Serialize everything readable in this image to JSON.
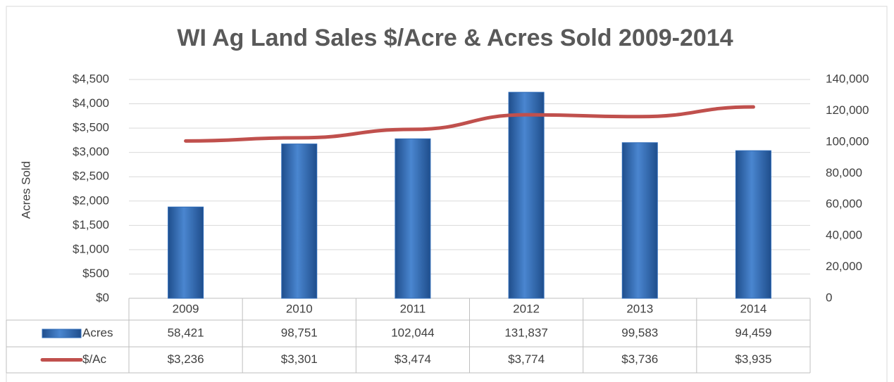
{
  "chart_data": {
    "type": "bar_line_table",
    "title": "WI Ag Land Sales $/Acre & Acres Sold 2009-2014",
    "ylabel": "Acres Sold",
    "categories": [
      "2009",
      "2010",
      "2011",
      "2012",
      "2013",
      "2014"
    ],
    "series": [
      {
        "name": "Acres",
        "type": "bar",
        "axis": "y2",
        "color": "#2e6bb8",
        "values": [
          58421,
          98751,
          102044,
          131837,
          99583,
          94459
        ],
        "value_labels": [
          "58,421",
          "98,751",
          "102,044",
          "131,837",
          "99,583",
          "94,459"
        ]
      },
      {
        "name": "$/Ac",
        "type": "line",
        "axis": "y",
        "color": "#c0504d",
        "values": [
          3236,
          3301,
          3474,
          3774,
          3736,
          3935
        ],
        "value_labels": [
          "$3,236",
          "$3,301",
          "$3,474",
          "$3,774",
          "$3,736",
          "$3,935"
        ]
      }
    ],
    "ylim": [
      0,
      4500
    ],
    "yticks": [
      {
        "value": 0,
        "label": "$0"
      },
      {
        "value": 500,
        "label": "$500"
      },
      {
        "value": 1000,
        "label": "$1,000"
      },
      {
        "value": 1500,
        "label": "$1,500"
      },
      {
        "value": 2000,
        "label": "$2,000"
      },
      {
        "value": 2500,
        "label": "$2,500"
      },
      {
        "value": 3000,
        "label": "$3,000"
      },
      {
        "value": 3500,
        "label": "$3,500"
      },
      {
        "value": 4000,
        "label": "$4,000"
      },
      {
        "value": 4500,
        "label": "$4,500"
      }
    ],
    "y2lim": [
      0,
      140000
    ],
    "y2ticks": [
      0,
      {
        "value": 20000,
        "label": "20,000"
      },
      {
        "value": 40000,
        "label": "40,000"
      },
      {
        "value": 60000,
        "label": "60,000"
      },
      {
        "value": 80000,
        "label": "80,000"
      },
      {
        "value": 100000,
        "label": "100,000"
      },
      {
        "value": 120000,
        "label": "120,000"
      },
      {
        "value": 140000,
        "label": "140,000"
      }
    ],
    "grid": true
  }
}
